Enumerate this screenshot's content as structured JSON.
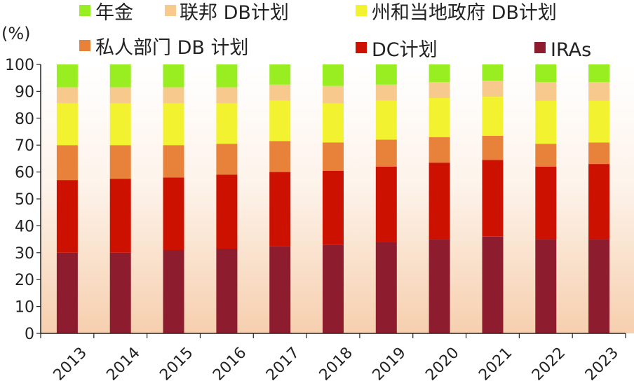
{
  "chart_data": {
    "type": "bar",
    "stacked": true,
    "ylabel": "(%)",
    "ylim": [
      0,
      100
    ],
    "yticks": [
      "0",
      "10",
      "20",
      "30",
      "40",
      "50",
      "60",
      "70",
      "80",
      "90",
      "100"
    ],
    "categories": [
      "2013",
      "2014",
      "2015",
      "2016",
      "2017",
      "2018",
      "2019",
      "2020",
      "2021",
      "2022",
      "2023"
    ],
    "legend_position": "top",
    "grid": false,
    "background": "gradient light-to-peach",
    "series": [
      {
        "name": "IRAs",
        "color": "#8c1c2e",
        "values": [
          30,
          30,
          31,
          31.5,
          32.5,
          33,
          34,
          35,
          36,
          35,
          35
        ]
      },
      {
        "name": "DC计划",
        "color": "#cc1100",
        "values": [
          27,
          27.5,
          27,
          27.5,
          27.5,
          27.5,
          28,
          28.5,
          28.5,
          27,
          28
        ]
      },
      {
        "name": "私人部门 DB 计划",
        "color": "#e8823a",
        "values": [
          13,
          12.5,
          12,
          11.5,
          11.5,
          10.5,
          10,
          9.5,
          9,
          8.5,
          8
        ]
      },
      {
        "name": "州和当地政府 DB计划",
        "color": "#f2f230",
        "values": [
          15.5,
          15.5,
          15.5,
          15,
          15,
          14.5,
          14.5,
          14.5,
          14.5,
          16,
          15.5
        ]
      },
      {
        "name": "联邦 DB计划",
        "color": "#f7c98c",
        "values": [
          6,
          6,
          6,
          6,
          6,
          6.5,
          6,
          6,
          6,
          7,
          7
        ]
      },
      {
        "name": "年金",
        "color": "#99ee22",
        "values": [
          8.5,
          8.5,
          8.5,
          8.5,
          7.5,
          8,
          7.5,
          6.5,
          6,
          6.5,
          6.5
        ]
      }
    ]
  },
  "legend": {
    "items": [
      {
        "label": "年金",
        "color": "#99ee22"
      },
      {
        "label": "联邦 DB计划",
        "color": "#f7c98c"
      },
      {
        "label": "州和当地政府 DB计划",
        "color": "#f2f230"
      },
      {
        "label": "私人部门 DB 计划",
        "color": "#e8823a"
      },
      {
        "label": "DC计划",
        "color": "#cc1100"
      },
      {
        "label": "IRAs",
        "color": "#8c1c2e"
      }
    ]
  }
}
